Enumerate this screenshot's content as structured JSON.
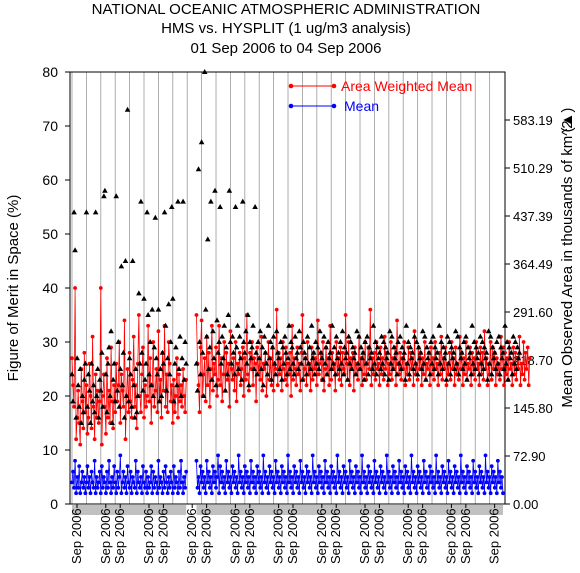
{
  "chart_data": {
    "type": "line",
    "title": "NATIONAL OCEANIC ATMOSPHERIC ADMINISTRATION",
    "subtitle": "HMS vs. HYSPLIT (1 ug/m3 analysis)",
    "date_range": "01 Sep 2006 to 04 Sep 2006",
    "ylabel": "Figure of Merit in Space (%)",
    "y2label": "Mean Observed Area in thousands of km^2",
    "y2label_marker": "(▲)",
    "ylim": [
      0,
      80
    ],
    "y_ticks": [
      0,
      10,
      20,
      30,
      40,
      50,
      60,
      70,
      80
    ],
    "y2lim": [
      0,
      656.1
    ],
    "y2_ticks": [
      "0.00",
      "72.90",
      "145.80",
      "218.70",
      "291.60",
      "364.49",
      "437.39",
      "510.29",
      "583.19"
    ],
    "x_tick_labels": [
      "Sep 2006",
      "Sep 2006",
      "Sep 2006",
      "Sep 2006",
      "Sep 2006",
      "Sep 2006",
      "Sep 2006",
      "Sep 2006",
      "Sep 2006",
      "Sep 2006",
      "Sep 2006",
      "Sep 2006",
      "Sep 2006",
      "Sep 2006",
      "Sep 2006",
      "Sep 2006",
      "Sep 2006",
      "Sep 2006",
      "Sep 2006",
      "Sep 2006"
    ],
    "grid": "vertical",
    "legend_position": "top-right",
    "colors": {
      "area_weighted": "#ff0000",
      "mean": "#0000ff",
      "area": "#000000",
      "grid": "#999999",
      "gap_bar": "#c0c0c0"
    },
    "n_points": 420,
    "segment_starts": [
      0,
      14,
      28,
      42,
      56,
      70,
      84,
      98,
      112,
      126,
      140,
      154,
      168,
      182,
      196,
      210,
      224,
      238,
      252,
      266,
      280,
      294,
      308,
      322,
      336,
      350,
      364,
      378,
      392,
      406
    ],
    "gaps": [
      [
        112,
        120
      ]
    ],
    "series": [
      {
        "name": "Area Weighted Mean",
        "marker": "circle",
        "values": [
          27,
          22,
          18,
          40,
          12,
          16,
          21,
          15,
          11,
          25,
          19,
          14,
          28,
          17,
          22,
          13,
          16,
          26,
          20,
          14,
          31,
          18,
          12,
          24,
          16,
          21,
          15,
          19,
          40,
          11,
          20,
          24,
          18,
          13,
          27,
          16,
          21,
          15,
          29,
          19,
          14,
          22,
          17,
          26,
          19,
          22,
          30,
          15,
          24,
          21,
          18,
          34,
          12,
          20,
          25,
          17,
          28,
          19,
          16,
          23,
          31,
          18,
          22,
          14,
          26,
          35,
          20,
          17,
          24,
          29,
          16,
          22,
          18,
          20,
          33,
          19,
          27,
          15,
          22,
          30,
          18,
          21,
          25,
          17,
          32,
          19,
          23,
          16,
          28,
          21,
          33,
          18,
          24,
          17,
          30,
          26,
          19,
          22,
          15,
          23,
          17,
          20,
          27,
          16,
          24,
          19,
          22,
          18,
          25,
          20,
          17,
          23,
          21,
          15,
          26,
          19,
          22,
          17,
          24,
          20,
          18,
          35,
          26,
          22,
          17,
          29,
          34,
          20,
          24,
          27,
          19,
          31,
          22,
          28,
          18,
          25,
          33,
          21,
          26,
          24,
          29,
          20,
          23,
          33,
          22,
          27,
          19,
          24,
          30,
          21,
          28,
          23,
          26,
          18,
          32,
          25,
          23,
          27,
          21,
          30,
          19,
          26,
          24,
          28,
          22,
          25,
          29,
          20,
          27,
          23,
          35,
          24,
          21,
          28,
          25,
          30,
          22,
          27,
          26,
          19,
          29,
          24,
          27,
          23,
          31,
          21,
          26,
          25,
          28,
          20,
          24,
          30,
          23,
          27,
          22,
          29,
          21,
          26,
          25,
          36,
          22,
          28,
          24,
          27,
          21,
          30,
          25,
          23,
          29,
          22,
          26,
          24,
          28,
          20,
          33,
          23,
          27,
          25,
          22,
          29,
          24,
          26,
          21,
          28,
          35,
          23,
          25,
          27,
          22,
          30,
          24,
          26,
          21,
          29,
          23,
          28,
          25,
          27,
          22,
          34,
          24,
          26,
          28,
          23,
          30,
          21,
          25,
          29,
          24,
          27,
          22,
          33,
          23,
          28,
          25,
          26,
          21,
          30,
          24,
          27,
          23,
          29,
          22,
          28,
          25,
          24,
          35,
          26,
          23,
          30,
          22,
          27,
          25,
          28,
          21,
          29,
          24,
          26,
          23,
          31,
          25,
          27,
          22,
          28,
          24,
          30,
          23,
          26,
          29,
          25,
          36,
          22,
          27,
          24,
          28,
          23,
          30,
          25,
          26,
          22,
          29,
          24,
          27,
          23,
          31,
          25,
          28,
          22,
          26,
          24,
          30,
          23,
          27,
          25,
          29,
          22,
          34,
          26,
          24,
          28,
          23,
          27,
          25,
          30,
          22,
          26,
          24,
          29,
          23,
          28,
          25,
          27,
          22,
          32,
          24,
          26,
          23,
          29,
          25,
          28,
          22,
          27,
          24,
          30,
          23,
          26,
          25,
          28,
          22,
          29,
          24,
          27,
          23,
          30,
          25,
          26,
          22,
          28,
          24,
          31,
          23,
          27,
          25,
          29,
          22,
          26,
          24,
          28,
          23,
          30,
          25,
          27,
          22,
          29,
          24,
          26,
          23,
          31,
          25,
          28,
          22,
          27,
          24,
          30,
          23,
          26,
          25,
          29,
          22,
          28,
          24,
          27,
          23,
          30,
          25,
          26,
          22,
          29,
          24,
          28,
          23,
          32,
          25,
          27,
          22,
          26,
          24,
          30,
          23,
          29,
          25,
          28,
          22,
          27,
          24,
          26,
          23,
          31,
          25,
          29,
          22,
          28,
          24,
          27,
          23,
          30,
          25,
          26,
          22,
          29,
          24,
          28,
          23,
          27,
          25,
          31,
          22,
          26,
          24,
          30,
          23,
          28,
          25,
          29,
          22,
          27
        ]
      },
      {
        "name": "Mean",
        "marker": "circle",
        "values": [
          4,
          6,
          3,
          8,
          2,
          5,
          3,
          7,
          2,
          4,
          6,
          3,
          5,
          2,
          4,
          7,
          3,
          5,
          2,
          6,
          4,
          3,
          8,
          2,
          5,
          3,
          4,
          6,
          2,
          7,
          3,
          5,
          4,
          2,
          6,
          3,
          8,
          4,
          2,
          5,
          3,
          7,
          4,
          2,
          6,
          3,
          5,
          9,
          2,
          4,
          6,
          3,
          5,
          2,
          7,
          4,
          3,
          6,
          2,
          5,
          4,
          3,
          8,
          2,
          6,
          4,
          3,
          5,
          2,
          7,
          4,
          3,
          6,
          2,
          5,
          3,
          4,
          7,
          2,
          6,
          3,
          5,
          4,
          2,
          8,
          3,
          5,
          4,
          2,
          6,
          3,
          7,
          4,
          2,
          5,
          3,
          6,
          4,
          2,
          7,
          3,
          5,
          4,
          2,
          6,
          3,
          8,
          4,
          2,
          5,
          3,
          6,
          4,
          2,
          7,
          3,
          5,
          4,
          2,
          6,
          4,
          8,
          3,
          5,
          2,
          7,
          4,
          6,
          3,
          5,
          2,
          8,
          4,
          6,
          3,
          5,
          2,
          7,
          4,
          6,
          3,
          5,
          9,
          2,
          7,
          4,
          6,
          3,
          5,
          2,
          8,
          4,
          6,
          3,
          5,
          2,
          7,
          4,
          6,
          3,
          5,
          2,
          9,
          4,
          6,
          3,
          5,
          2,
          7,
          4,
          6,
          3,
          5,
          2,
          8,
          4,
          6,
          3,
          5,
          2,
          7,
          4,
          6,
          3,
          5,
          2,
          9,
          4,
          6,
          3,
          5,
          2,
          7,
          4,
          6,
          3,
          5,
          2,
          8,
          4,
          6,
          3,
          5,
          2,
          7,
          4,
          6,
          3,
          5,
          2,
          9,
          4,
          6,
          3,
          5,
          2,
          7,
          4,
          6,
          3,
          5,
          2,
          8,
          4,
          6,
          3,
          5,
          2,
          7,
          4,
          6,
          3,
          5,
          2,
          9,
          4,
          6,
          3,
          5,
          2,
          7,
          4,
          6,
          3,
          5,
          2,
          8,
          4,
          6,
          3,
          5,
          2,
          7,
          4,
          6,
          3,
          5,
          2,
          9,
          4,
          6,
          3,
          5,
          2,
          7,
          4,
          6,
          3,
          5,
          2,
          8,
          4,
          6,
          3,
          5,
          2,
          7,
          4,
          6,
          3,
          5,
          2,
          9,
          4,
          6,
          3,
          5,
          2,
          7,
          4,
          6,
          3,
          5,
          2,
          8,
          4,
          6,
          3,
          5,
          2,
          7,
          4,
          6,
          3,
          5,
          2,
          9,
          4,
          6,
          3,
          5,
          2,
          7,
          4,
          6,
          3,
          5,
          2,
          8,
          4,
          6,
          3,
          5,
          2,
          7,
          4,
          6,
          3,
          5,
          2,
          9,
          4,
          6,
          3,
          5,
          2,
          7,
          4,
          6,
          3,
          5,
          2,
          8,
          4,
          6,
          3,
          5,
          2,
          7,
          4,
          6,
          3,
          5,
          2,
          9,
          4,
          6,
          3,
          5,
          2,
          7,
          4,
          6,
          3,
          5,
          2,
          8,
          4,
          6,
          3,
          5,
          2,
          7,
          4,
          6,
          3,
          5,
          2,
          9,
          4,
          6,
          3,
          5,
          2,
          7,
          4,
          6,
          3,
          5,
          2,
          8,
          4,
          6,
          3,
          5,
          2,
          7,
          4,
          6,
          3,
          5,
          2,
          9,
          4,
          6,
          3,
          5,
          2,
          7,
          4,
          6,
          3,
          5,
          2,
          8,
          4,
          6,
          3,
          5,
          2
        ]
      },
      {
        "name": "Mean Observed Area",
        "axis": "right",
        "marker": "triangle",
        "values": [
          24,
          19,
          54,
          47,
          16,
          27,
          22,
          18,
          25,
          15,
          20,
          17,
          23,
          26,
          54,
          18,
          24,
          21,
          15,
          26,
          19,
          22,
          17,
          54,
          20,
          25,
          16,
          23,
          21,
          28,
          18,
          57,
          58,
          24,
          17,
          26,
          29,
          20,
          32,
          15,
          23,
          26,
          19,
          57,
          21,
          30,
          18,
          25,
          44,
          22,
          28,
          16,
          45,
          20,
          73,
          19,
          27,
          24,
          18,
          45,
          22,
          16,
          25,
          17,
          20,
          39,
          26,
          56,
          28,
          21,
          38,
          23,
          26,
          54,
          35,
          24,
          30,
          22,
          36,
          20,
          29,
          53,
          27,
          24,
          36,
          19,
          25,
          20,
          28,
          26,
          54,
          33,
          21,
          27,
          37,
          24,
          30,
          55,
          38,
          19,
          26,
          29,
          22,
          56,
          25,
          31,
          20,
          27,
          56,
          23,
          30,
          26,
          55,
          21,
          33,
          24,
          56,
          29,
          37,
          22,
          52,
          26,
          21,
          62,
          30,
          24,
          67,
          28,
          20,
          80,
          36,
          31,
          49,
          25,
          29,
          56,
          23,
          32,
          27,
          58,
          22,
          34,
          28,
          30,
          55,
          26,
          31,
          27,
          33,
          21,
          29,
          24,
          35,
          58,
          30,
          26,
          31,
          28,
          24,
          55,
          29,
          33,
          25,
          31,
          27,
          23,
          56,
          30,
          28,
          32,
          26,
          35,
          22,
          30,
          27,
          29,
          33,
          25,
          55,
          28,
          24,
          30,
          27,
          32,
          25,
          29,
          22,
          31,
          28,
          26,
          24,
          33,
          27,
          30,
          23,
          29,
          31,
          26,
          24,
          32,
          28,
          27,
          25,
          30,
          23,
          29,
          26,
          31,
          28,
          24,
          27,
          33,
          25,
          30,
          29,
          26,
          24,
          31,
          27,
          28,
          25,
          32,
          29,
          26,
          23,
          30,
          28,
          27,
          24,
          31,
          26,
          29,
          25,
          33,
          27,
          28,
          24,
          30,
          26,
          29,
          25,
          32,
          28,
          27,
          23,
          31,
          26,
          29,
          24,
          30,
          27,
          28,
          25,
          33,
          26,
          29,
          24,
          31,
          27,
          28,
          25,
          30,
          26,
          32,
          24,
          29,
          27,
          28,
          23,
          31,
          26,
          30,
          25,
          29,
          27,
          28,
          24,
          32,
          26,
          31,
          25,
          29,
          27,
          28,
          23,
          30,
          26,
          31,
          24,
          29,
          27,
          28,
          25,
          33,
          26,
          30,
          24,
          29,
          27,
          28,
          25,
          31,
          26,
          30,
          24,
          29,
          27,
          28,
          23,
          32,
          26,
          31,
          25,
          29,
          27,
          28,
          24,
          30,
          26,
          31,
          25,
          29,
          27,
          28,
          23,
          33,
          26,
          30,
          24,
          29,
          27,
          28,
          25,
          31,
          26,
          30,
          24,
          29,
          27,
          28,
          25,
          32,
          26,
          31,
          23,
          29,
          27,
          28,
          24,
          30,
          26,
          31,
          25,
          29,
          27,
          28,
          24,
          33,
          26,
          30,
          25,
          29,
          27,
          28,
          23,
          31,
          26,
          30,
          24,
          29,
          27,
          28,
          25,
          32,
          26,
          31,
          24,
          29,
          27,
          28,
          25,
          30,
          26,
          31,
          23,
          29,
          27,
          28,
          24,
          33,
          26,
          30,
          25,
          29,
          27,
          28,
          24,
          31,
          26,
          30,
          25,
          29,
          27,
          28,
          23,
          32,
          26,
          31,
          24,
          29,
          27,
          28,
          25,
          30,
          26,
          31,
          24,
          29,
          27,
          28,
          25,
          33,
          26,
          30,
          23,
          29,
          27,
          28,
          24,
          31,
          26,
          30,
          25,
          29,
          27,
          28
        ]
      }
    ]
  }
}
